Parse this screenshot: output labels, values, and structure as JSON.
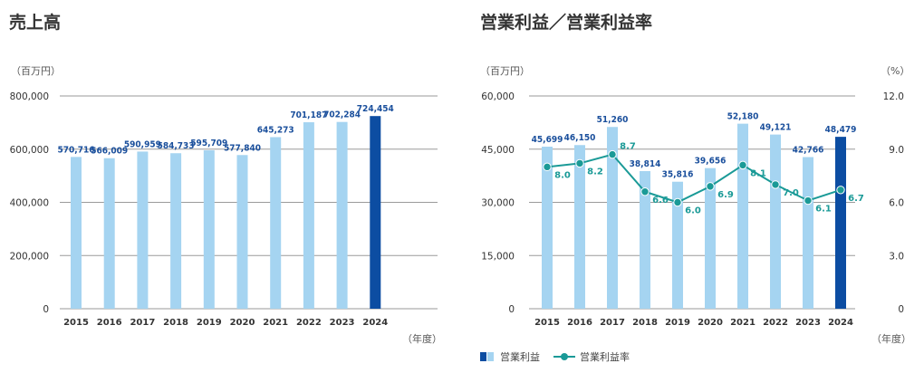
{
  "chart_data": [
    {
      "type": "bar",
      "title": "売上高",
      "unit_label": "（百万円）",
      "x_unit_label": "（年度）",
      "categories": [
        "2015",
        "2016",
        "2017",
        "2018",
        "2019",
        "2020",
        "2021",
        "2022",
        "2023",
        "2024"
      ],
      "values": [
        570716,
        566009,
        590959,
        584733,
        595709,
        577840,
        645273,
        701187,
        702284,
        724454
      ],
      "value_labels": [
        "570,716",
        "566,009",
        "590,959",
        "584,733",
        "595,709",
        "577,840",
        "645,273",
        "701,187",
        "702,284",
        "724,454"
      ],
      "yticks": [
        "0",
        "200,000",
        "400,000",
        "600,000",
        "800,000"
      ],
      "ylim": [
        0,
        800000
      ],
      "colors": {
        "bar": "#a5d4f1",
        "highlight": "#0c4da2",
        "label": "#1a4f9c"
      }
    },
    {
      "type": "bar+line",
      "title": "営業利益／営業利益率",
      "unit_label_left": "（百万円）",
      "unit_label_right": "（%）",
      "x_unit_label": "（年度）",
      "categories": [
        "2015",
        "2016",
        "2017",
        "2018",
        "2019",
        "2020",
        "2021",
        "2022",
        "2023",
        "2024"
      ],
      "series": [
        {
          "name": "営業利益",
          "type": "bar",
          "values": [
            45699,
            46150,
            51260,
            38814,
            35816,
            39656,
            52180,
            49121,
            42766,
            48479
          ],
          "value_labels": [
            "45,699",
            "46,150",
            "51,260",
            "38,814",
            "35,816",
            "39,656",
            "52,180",
            "49,121",
            "42,766",
            "48,479"
          ]
        },
        {
          "name": "営業利益率",
          "type": "line",
          "values": [
            8.0,
            8.2,
            8.7,
            6.6,
            6.0,
            6.9,
            8.1,
            7.0,
            6.1,
            6.7
          ],
          "value_labels": [
            "8.0",
            "8.2",
            "8.7",
            "6.6",
            "6.0",
            "6.9",
            "8.1",
            "7.0",
            "6.1",
            "6.7"
          ]
        }
      ],
      "yticks_left": [
        "0",
        "15,000",
        "30,000",
        "45,000",
        "60,000"
      ],
      "yticks_right": [
        "0",
        "3.0",
        "6.0",
        "9.0",
        "12.0"
      ],
      "ylim_left": [
        0,
        60000
      ],
      "ylim_right": [
        0,
        12
      ],
      "legend": [
        "営業利益",
        "営業利益率"
      ],
      "colors": {
        "bar": "#a5d4f1",
        "highlight": "#0c4da2",
        "line": "#1a9a97",
        "label": "#1a4f9c"
      }
    }
  ]
}
